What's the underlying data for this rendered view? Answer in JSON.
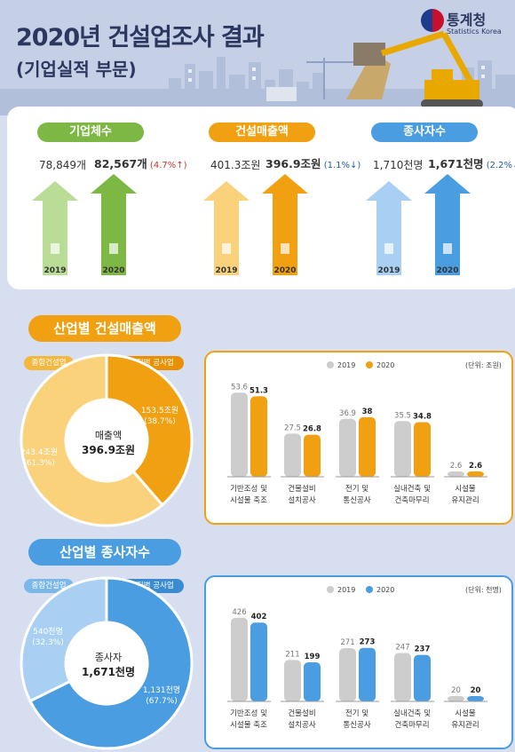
{
  "header": {
    "title": "2020년 건설업조사 결과",
    "subtitle": "(기업실적 부문)",
    "org_name": "통계청",
    "org_sub": "Statistics Korea"
  },
  "summary": [
    {
      "label": "기업체수",
      "color": "#7db845",
      "light": "#b9dd96",
      "v2019": "78,849개",
      "v2020": "82,567개",
      "change": "(4.7%",
      "arrow": "↑",
      "dir": "up",
      "y2019": "2019",
      "y2020": "2020",
      "icon": "building-icon"
    },
    {
      "label": "건설매출액",
      "color": "#f0a010",
      "light": "#fbd27c",
      "v2019": "401.3조원",
      "v2020": "396.9조원",
      "change": "(1.1%",
      "arrow": "↓",
      "dir": "down",
      "y2019": "2019",
      "y2020": "2020",
      "icon": "money-bag-icon"
    },
    {
      "label": "종사자수",
      "color": "#4a9de0",
      "light": "#a9d0f2",
      "v2019": "1,710천명",
      "v2020": "1,671천명",
      "change": "(2.2%",
      "arrow": "↓",
      "dir": "down",
      "y2019": "2019",
      "y2020": "2020",
      "icon": "person-icon"
    }
  ],
  "sales_section": {
    "title": "산업별 건설매출액",
    "tag_general": "종합건설업",
    "tag_special": "전문직별 공사업",
    "center_title": "매출액",
    "center_value": "396.9조원",
    "slice_special": {
      "value": "153.5조원",
      "pct": "(38.7%)"
    },
    "slice_general": {
      "value": "243.4조원",
      "pct": "(61.3%)"
    },
    "legend_2019": "2019",
    "legend_2020": "2020",
    "unit": "(단위: 조원)"
  },
  "emp_section": {
    "title": "산업별 종사자수",
    "tag_general": "종합건설업",
    "tag_special": "전문직별 공사업",
    "center_title": "종사자",
    "center_value": "1,671천명",
    "slice_general": {
      "value": "540천명",
      "pct": "(32.3%)"
    },
    "slice_special": {
      "value": "1,131천명",
      "pct": "(67.7%)"
    },
    "legend_2019": "2019",
    "legend_2020": "2020",
    "unit": "(단위: 천명)"
  },
  "chart_data": [
    {
      "type": "pie",
      "title": "산업별 건설매출액",
      "categories": [
        "전문직별 공사업",
        "종합건설업"
      ],
      "values": [
        153.5,
        243.4
      ],
      "percent": [
        38.7,
        61.3
      ],
      "colors": [
        "#f0a010",
        "#fbd27c"
      ]
    },
    {
      "type": "bar",
      "title": "산업별 건설매출액",
      "categories": [
        "기반조성 및 시설물 축조",
        "건물설비 설치공사",
        "전기 및 통신공사",
        "실내건축 및 건축마무리",
        "시설물 유지관리"
      ],
      "series": [
        {
          "name": "2019",
          "values": [
            53.6,
            27.5,
            36.9,
            35.5,
            2.6
          ]
        },
        {
          "name": "2020",
          "values": [
            51.3,
            26.8,
            38.0,
            34.8,
            2.6
          ]
        }
      ],
      "ylim": [
        0,
        60
      ],
      "colors": [
        "#cccccc",
        "#f0a010"
      ]
    },
    {
      "type": "pie",
      "title": "산업별 종사자수",
      "categories": [
        "전문직별 공사업",
        "종합건설업"
      ],
      "values": [
        1131,
        540
      ],
      "percent": [
        67.7,
        32.3
      ],
      "colors": [
        "#4a9de0",
        "#a9d0f2"
      ]
    },
    {
      "type": "bar",
      "title": "산업별 종사자수",
      "categories": [
        "기반조성 및 시설물 축조",
        "건물설비 설치공사",
        "전기 및 통신공사",
        "실내건축 및 건축마무리",
        "시설물 유지관리"
      ],
      "series": [
        {
          "name": "2019",
          "values": [
            426,
            211,
            271,
            247,
            20
          ]
        },
        {
          "name": "2020",
          "values": [
            402,
            199,
            273,
            237,
            20
          ]
        }
      ],
      "ylim": [
        0,
        480
      ],
      "colors": [
        "#cccccc",
        "#4a9de0"
      ]
    }
  ],
  "cat_lines": [
    [
      "기반조성 및",
      "시설물 축조"
    ],
    [
      "건물설비",
      "설치공사"
    ],
    [
      "전기 및",
      "통신공사"
    ],
    [
      "실내건축 및",
      "건축마무리"
    ],
    [
      "시설물",
      "유지관리"
    ]
  ]
}
